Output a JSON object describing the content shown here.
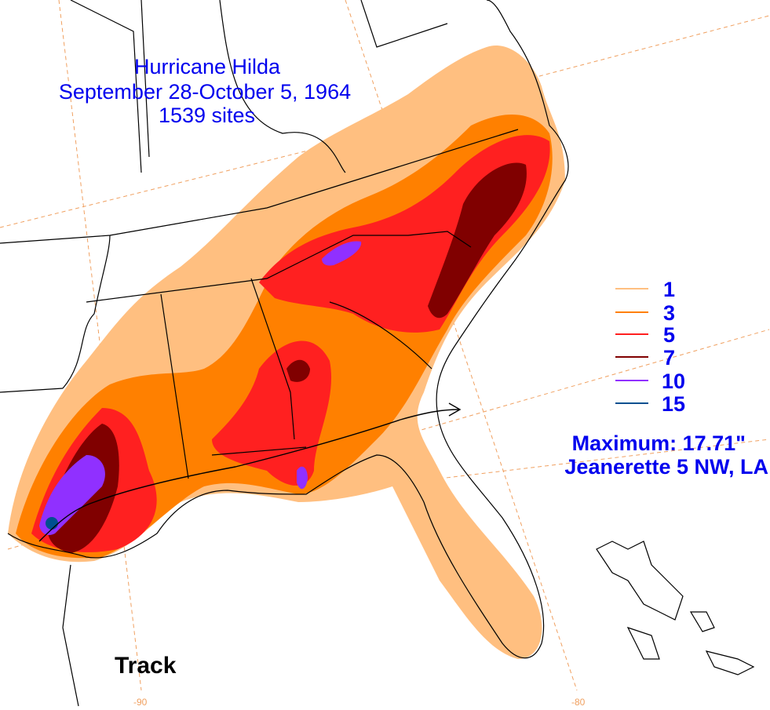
{
  "title": {
    "line1": "Hurricane Hilda",
    "line2": "September 28-October 5, 1964",
    "line3": "1539 sites"
  },
  "legend": {
    "items": [
      {
        "value": "1",
        "color": "#ffbf80"
      },
      {
        "value": "3",
        "color": "#ff8000"
      },
      {
        "value": "5",
        "color": "#ff2020"
      },
      {
        "value": "7",
        "color": "#800000"
      },
      {
        "value": "10",
        "color": "#9030ff"
      },
      {
        "value": "15",
        "color": "#005090"
      }
    ]
  },
  "maximum": {
    "line1": "Maximum:  17.71\"",
    "line2": "Jeanerette 5 NW, LA"
  },
  "track_label": "Track",
  "longitudes": {
    "lon1": "-90",
    "lon2": "-80"
  },
  "colors": {
    "land_boundary": "#000000",
    "graticule": "#f0a060",
    "text_blue": "#0000ee"
  }
}
